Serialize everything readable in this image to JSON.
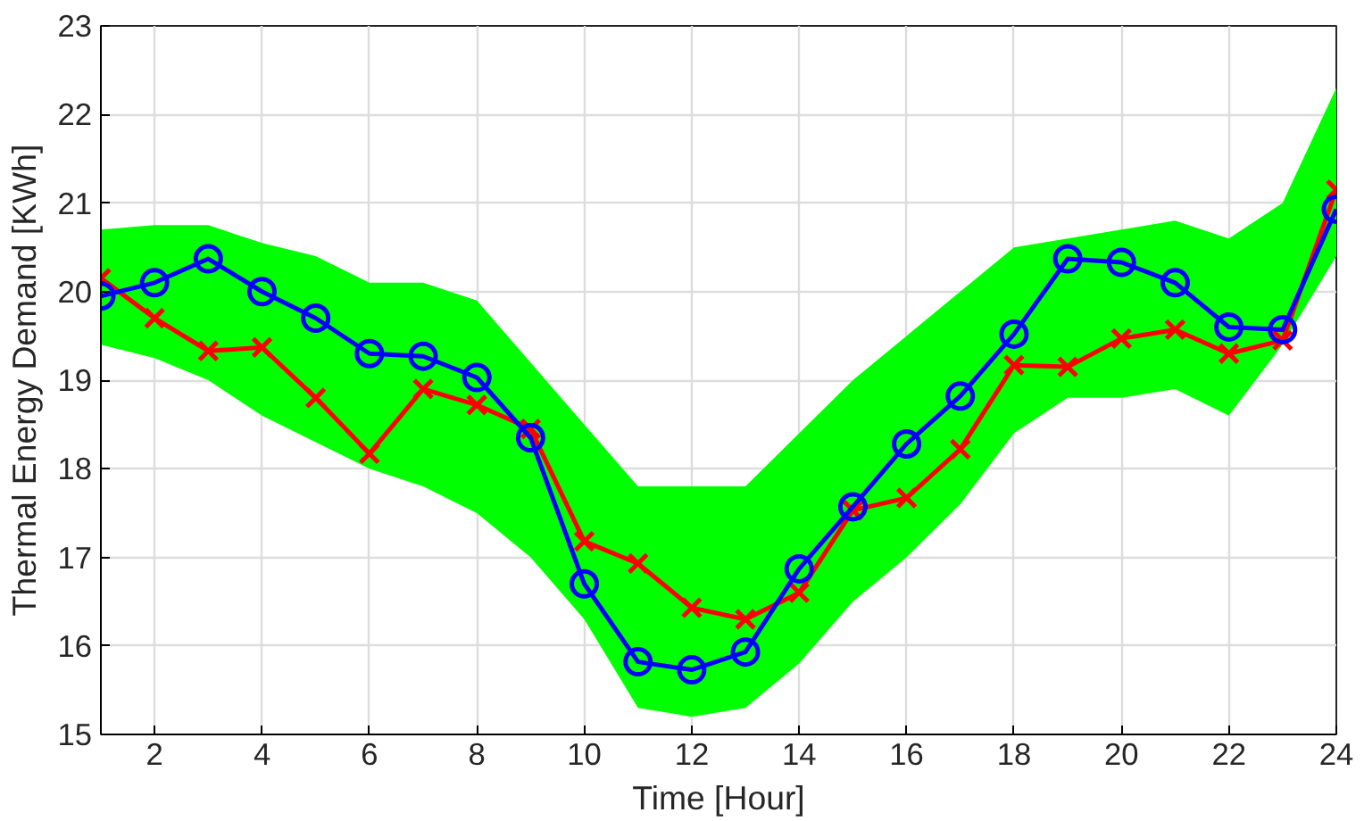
{
  "chart_data": {
    "type": "line",
    "xlabel": "Time [Hour]",
    "ylabel": "Thermal Energy Demand [KWh]",
    "x": [
      1,
      2,
      3,
      4,
      5,
      6,
      7,
      8,
      9,
      10,
      11,
      12,
      13,
      14,
      15,
      16,
      17,
      18,
      19,
      20,
      21,
      22,
      23,
      24
    ],
    "xlim": [
      1,
      24
    ],
    "xticks": [
      2,
      4,
      6,
      8,
      10,
      12,
      14,
      16,
      18,
      20,
      22,
      24
    ],
    "ylim": [
      15,
      23
    ],
    "yticks": [
      15,
      16,
      17,
      18,
      19,
      20,
      21,
      22,
      23
    ],
    "grid": true,
    "series": [
      {
        "type": "area",
        "color": "#00ff00",
        "values": [
          null,
          null,
          null,
          null,
          null,
          null,
          null,
          null,
          null,
          null,
          null,
          null,
          null,
          null,
          null,
          null,
          null,
          null,
          null,
          null,
          null,
          null,
          null,
          null
        ],
        "lower": [
          19.4,
          19.25,
          19.0,
          18.6,
          18.3,
          18.0,
          17.8,
          17.5,
          17.0,
          16.3,
          15.3,
          15.2,
          15.3,
          15.8,
          16.5,
          17.0,
          17.6,
          18.4,
          18.8,
          18.8,
          18.9,
          18.6,
          19.4,
          20.4
        ],
        "upper": [
          20.7,
          20.75,
          20.75,
          20.55,
          20.4,
          20.1,
          20.1,
          19.9,
          19.2,
          18.5,
          17.8,
          17.8,
          17.8,
          18.4,
          19.0,
          19.5,
          20.0,
          20.5,
          20.6,
          20.7,
          20.8,
          20.6,
          21.0,
          22.3
        ]
      },
      {
        "color": "#ff0000",
        "marker": "cross",
        "values": [
          20.15,
          19.7,
          19.33,
          19.37,
          18.8,
          18.17,
          18.9,
          18.72,
          18.45,
          17.18,
          16.93,
          16.43,
          16.3,
          16.6,
          17.53,
          17.67,
          18.22,
          19.17,
          19.15,
          19.47,
          19.57,
          19.3,
          19.45,
          21.15
        ]
      },
      {
        "color": "#0000ff",
        "marker": "circle",
        "values": [
          19.95,
          20.1,
          20.37,
          20.0,
          19.7,
          19.3,
          19.27,
          19.03,
          18.35,
          16.7,
          15.82,
          15.73,
          15.93,
          16.87,
          17.57,
          18.28,
          18.82,
          19.52,
          20.37,
          20.33,
          20.1,
          19.6,
          19.57,
          20.93
        ]
      }
    ]
  }
}
